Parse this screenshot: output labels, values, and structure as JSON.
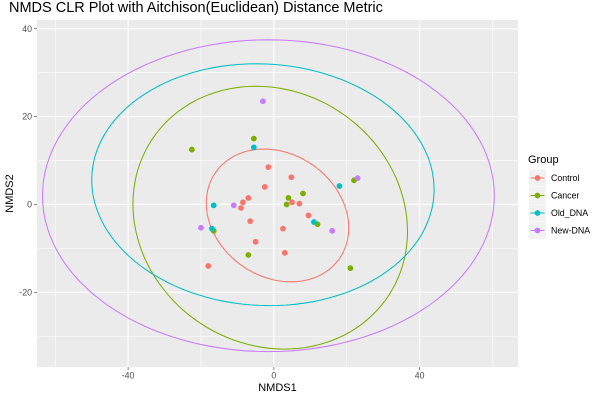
{
  "chart_data": {
    "type": "scatter",
    "title": "NMDS CLR Plot with Aitchison(Euclidean) Distance Metric",
    "xlabel": "NMDS1",
    "ylabel": "NMDS2",
    "xlim": [
      -65,
      67
    ],
    "ylim": [
      -37,
      42
    ],
    "x_ticks": [
      -40,
      0,
      40
    ],
    "y_ticks": [
      -20,
      0,
      20,
      40
    ],
    "grid": true,
    "legend": {
      "title": "Group",
      "position": "right"
    },
    "series": [
      {
        "name": "Control",
        "color": "#F8766D",
        "points": [
          [
            -1.5,
            8.5
          ],
          [
            4.8,
            6.2
          ],
          [
            -2.5,
            4
          ],
          [
            5,
            0.5
          ],
          [
            7,
            0.2
          ],
          [
            9.5,
            -2.5
          ],
          [
            -7,
            1.5
          ],
          [
            -8.5,
            0.5
          ],
          [
            -9,
            -0.8
          ],
          [
            -6.5,
            -3.8
          ],
          [
            2.5,
            -5.5
          ],
          [
            -5,
            -8.5
          ],
          [
            3,
            -11
          ],
          [
            -18,
            -14
          ]
        ],
        "ellipse": {
          "cx": 1,
          "cy": -2.5,
          "rx": 20,
          "ry": 14.5,
          "angle": -18
        }
      },
      {
        "name": "Cancer",
        "color": "#7CAE00",
        "points": [
          [
            -5.5,
            15
          ],
          [
            -22.5,
            12.5
          ],
          [
            8,
            2.5
          ],
          [
            4,
            1.5
          ],
          [
            3.5,
            0
          ],
          [
            12,
            -4.5
          ],
          [
            -16.5,
            -6
          ],
          [
            -7,
            -11.5
          ],
          [
            21,
            -14.5
          ],
          [
            22,
            5.5
          ]
        ],
        "ellipse": {
          "cx": -1,
          "cy": -3,
          "rx": 38,
          "ry": 29.5,
          "angle": -12
        }
      },
      {
        "name": "Old_DNA",
        "color": "#00BFC4",
        "points": [
          [
            -5.5,
            13
          ],
          [
            18,
            4.2
          ],
          [
            -16.5,
            -0.2
          ],
          [
            11,
            -4
          ],
          [
            -17,
            -5.5
          ]
        ],
        "ellipse": {
          "cx": -3,
          "cy": 4.5,
          "rx": 47,
          "ry": 27.5,
          "angle": -2
        }
      },
      {
        "name": "New-DNA",
        "color": "#C77CFF",
        "points": [
          [
            -3,
            23.5
          ],
          [
            23,
            6
          ],
          [
            -11,
            -0.2
          ],
          [
            -20,
            -5.3
          ],
          [
            16,
            -6
          ]
        ],
        "ellipse": {
          "cx": -1.5,
          "cy": 2,
          "rx": 62,
          "ry": 35.5,
          "angle": 0
        }
      }
    ]
  }
}
